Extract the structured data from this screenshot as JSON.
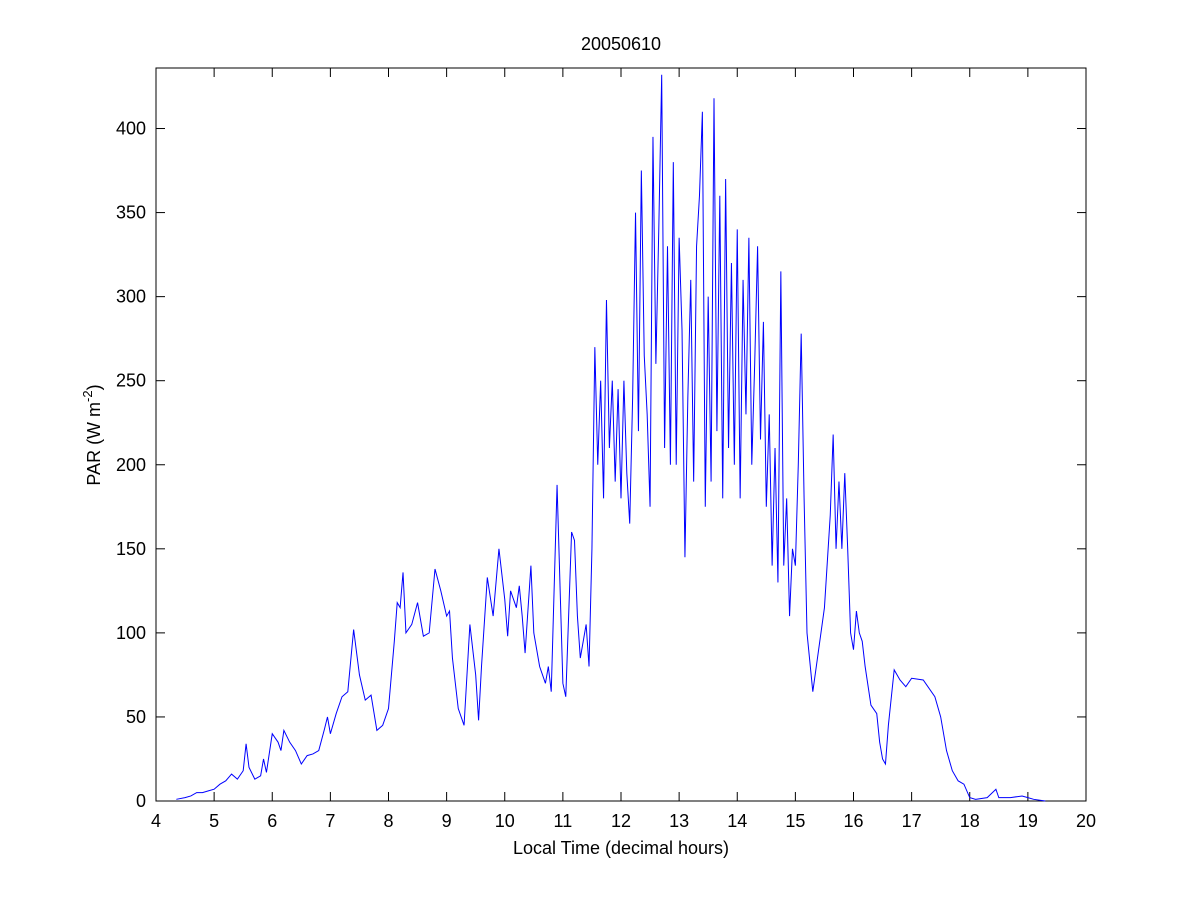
{
  "chart_data": {
    "type": "line",
    "title": "20050610",
    "xlabel": "Local Time (decimal hours)",
    "ylabel": {
      "text": "PAR (W m",
      "superscript": "-2",
      "suffix": ")"
    },
    "color": "#0000ff",
    "xlim": [
      4,
      20
    ],
    "xticks": [
      4,
      5,
      6,
      7,
      8,
      9,
      10,
      11,
      12,
      13,
      14,
      15,
      16,
      17,
      18,
      19,
      20
    ],
    "ylim": [
      0,
      436
    ],
    "yticks": [
      0,
      50,
      100,
      150,
      200,
      250,
      300,
      350,
      400
    ],
    "x": [
      4.35,
      4.5,
      4.6,
      4.7,
      4.8,
      4.9,
      5.0,
      5.1,
      5.2,
      5.3,
      5.4,
      5.5,
      5.55,
      5.6,
      5.7,
      5.8,
      5.85,
      5.9,
      6.0,
      6.1,
      6.15,
      6.2,
      6.3,
      6.4,
      6.5,
      6.6,
      6.7,
      6.8,
      6.9,
      6.95,
      7.0,
      7.1,
      7.2,
      7.3,
      7.4,
      7.5,
      7.6,
      7.7,
      7.8,
      7.9,
      8.0,
      8.1,
      8.15,
      8.2,
      8.25,
      8.3,
      8.4,
      8.5,
      8.6,
      8.7,
      8.8,
      8.9,
      9.0,
      9.05,
      9.1,
      9.2,
      9.3,
      9.4,
      9.5,
      9.55,
      9.6,
      9.7,
      9.8,
      9.9,
      10.0,
      10.05,
      10.1,
      10.2,
      10.25,
      10.3,
      10.35,
      10.45,
      10.5,
      10.6,
      10.7,
      10.75,
      10.8,
      10.9,
      11.0,
      11.05,
      11.15,
      11.2,
      11.25,
      11.3,
      11.4,
      11.45,
      11.5,
      11.55,
      11.6,
      11.65,
      11.7,
      11.75,
      11.8,
      11.85,
      11.9,
      11.95,
      12.0,
      12.05,
      12.1,
      12.15,
      12.2,
      12.25,
      12.3,
      12.35,
      12.4,
      12.45,
      12.5,
      12.55,
      12.6,
      12.65,
      12.7,
      12.75,
      12.8,
      12.85,
      12.9,
      12.95,
      13.0,
      13.05,
      13.1,
      13.15,
      13.2,
      13.25,
      13.3,
      13.35,
      13.4,
      13.45,
      13.5,
      13.55,
      13.6,
      13.65,
      13.7,
      13.75,
      13.8,
      13.85,
      13.9,
      13.95,
      14.0,
      14.05,
      14.1,
      14.15,
      14.2,
      14.25,
      14.3,
      14.35,
      14.4,
      14.45,
      14.5,
      14.55,
      14.6,
      14.65,
      14.7,
      14.75,
      14.8,
      14.85,
      14.9,
      14.95,
      15.0,
      15.05,
      15.1,
      15.15,
      15.2,
      15.3,
      15.4,
      15.5,
      15.6,
      15.65,
      15.7,
      15.75,
      15.8,
      15.85,
      15.9,
      15.95,
      16.0,
      16.05,
      16.1,
      16.15,
      16.2,
      16.3,
      16.4,
      16.45,
      16.5,
      16.55,
      16.6,
      16.7,
      16.8,
      16.9,
      17.0,
      17.2,
      17.4,
      17.5,
      17.6,
      17.7,
      17.8,
      17.9,
      18.0,
      18.1,
      18.3,
      18.45,
      18.5,
      18.7,
      18.9,
      19.0,
      19.1,
      19.3
    ],
    "values": [
      1,
      2,
      3,
      5,
      5,
      6,
      7,
      10,
      12,
      16,
      13,
      18,
      34,
      20,
      13,
      15,
      25,
      17,
      40,
      35,
      30,
      42,
      35,
      30,
      22,
      27,
      28,
      30,
      43,
      50,
      40,
      52,
      62,
      65,
      102,
      75,
      60,
      63,
      42,
      45,
      55,
      95,
      118,
      115,
      136,
      100,
      105,
      118,
      98,
      100,
      138,
      125,
      110,
      113,
      85,
      55,
      45,
      105,
      75,
      48,
      80,
      133,
      110,
      150,
      120,
      98,
      125,
      115,
      128,
      110,
      88,
      140,
      100,
      80,
      70,
      80,
      65,
      188,
      70,
      62,
      160,
      155,
      110,
      85,
      105,
      80,
      150,
      270,
      200,
      250,
      180,
      298,
      210,
      250,
      190,
      245,
      180,
      250,
      195,
      165,
      240,
      350,
      220,
      375,
      265,
      230,
      175,
      395,
      260,
      340,
      432,
      210,
      330,
      200,
      380,
      200,
      335,
      280,
      145,
      240,
      310,
      190,
      330,
      360,
      410,
      175,
      300,
      190,
      418,
      220,
      360,
      180,
      370,
      210,
      320,
      200,
      340,
      180,
      310,
      230,
      335,
      200,
      260,
      330,
      215,
      285,
      175,
      230,
      140,
      210,
      130,
      315,
      140,
      180,
      110,
      150,
      140,
      200,
      278,
      180,
      100,
      65,
      90,
      115,
      170,
      218,
      150,
      190,
      150,
      195,
      150,
      100,
      90,
      113,
      100,
      95,
      80,
      57,
      52,
      35,
      25,
      22,
      45,
      78,
      72,
      68,
      73,
      72,
      62,
      50,
      30,
      18,
      12,
      10,
      2,
      1,
      2,
      7,
      2,
      2,
      3,
      2,
      1,
      0
    ]
  }
}
